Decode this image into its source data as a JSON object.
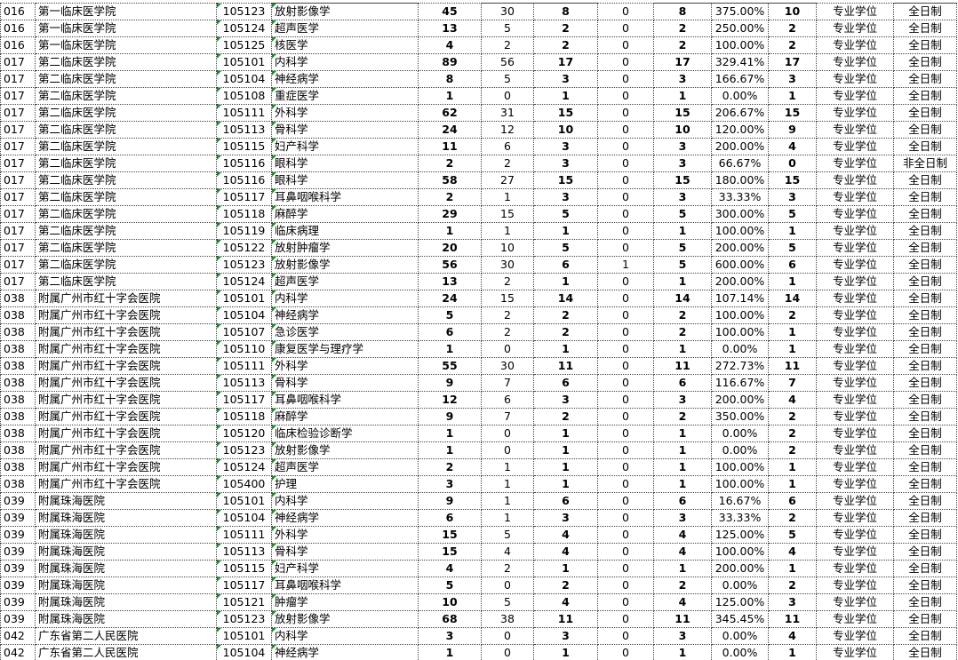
{
  "table": {
    "rows": [
      [
        "016",
        "第一临床医学院",
        "105123",
        "放射影像学",
        45,
        30,
        8,
        0,
        8,
        "375.00%",
        10,
        "专业学位",
        "全日制"
      ],
      [
        "016",
        "第一临床医学院",
        "105124",
        "超声医学",
        13,
        5,
        2,
        0,
        2,
        "250.00%",
        2,
        "专业学位",
        "全日制"
      ],
      [
        "016",
        "第一临床医学院",
        "105125",
        "核医学",
        4,
        2,
        2,
        0,
        2,
        "100.00%",
        2,
        "专业学位",
        "全日制"
      ],
      [
        "017",
        "第二临床医学院",
        "105101",
        "内科学",
        89,
        56,
        17,
        0,
        17,
        "329.41%",
        17,
        "专业学位",
        "全日制"
      ],
      [
        "017",
        "第二临床医学院",
        "105104",
        "神经病学",
        8,
        5,
        3,
        0,
        3,
        "166.67%",
        3,
        "专业学位",
        "全日制"
      ],
      [
        "017",
        "第二临床医学院",
        "105108",
        "重症医学",
        1,
        0,
        1,
        0,
        1,
        "0.00%",
        1,
        "专业学位",
        "全日制"
      ],
      [
        "017",
        "第二临床医学院",
        "105111",
        "外科学",
        62,
        31,
        15,
        0,
        15,
        "206.67%",
        15,
        "专业学位",
        "全日制"
      ],
      [
        "017",
        "第二临床医学院",
        "105113",
        "骨科学",
        24,
        12,
        10,
        0,
        10,
        "120.00%",
        9,
        "专业学位",
        "全日制"
      ],
      [
        "017",
        "第二临床医学院",
        "105115",
        "妇产科学",
        11,
        6,
        3,
        0,
        3,
        "200.00%",
        4,
        "专业学位",
        "全日制"
      ],
      [
        "017",
        "第二临床医学院",
        "105116",
        "眼科学",
        2,
        2,
        3,
        0,
        3,
        "66.67%",
        0,
        "专业学位",
        "非全日制"
      ],
      [
        "017",
        "第二临床医学院",
        "105116",
        "眼科学",
        58,
        27,
        15,
        0,
        15,
        "180.00%",
        15,
        "专业学位",
        "全日制"
      ],
      [
        "017",
        "第二临床医学院",
        "105117",
        "耳鼻咽喉科学",
        2,
        1,
        3,
        0,
        3,
        "33.33%",
        3,
        "专业学位",
        "全日制"
      ],
      [
        "017",
        "第二临床医学院",
        "105118",
        "麻醉学",
        29,
        15,
        5,
        0,
        5,
        "300.00%",
        5,
        "专业学位",
        "全日制"
      ],
      [
        "017",
        "第二临床医学院",
        "105119",
        "临床病理",
        1,
        1,
        1,
        0,
        1,
        "100.00%",
        1,
        "专业学位",
        "全日制"
      ],
      [
        "017",
        "第二临床医学院",
        "105122",
        "放射肿瘤学",
        20,
        10,
        5,
        0,
        5,
        "200.00%",
        5,
        "专业学位",
        "全日制"
      ],
      [
        "017",
        "第二临床医学院",
        "105123",
        "放射影像学",
        56,
        30,
        6,
        1,
        5,
        "600.00%",
        6,
        "专业学位",
        "全日制"
      ],
      [
        "017",
        "第二临床医学院",
        "105124",
        "超声医学",
        13,
        2,
        1,
        0,
        1,
        "200.00%",
        1,
        "专业学位",
        "全日制"
      ],
      [
        "038",
        "附属广州市红十字会医院",
        "105101",
        "内科学",
        24,
        15,
        14,
        0,
        14,
        "107.14%",
        14,
        "专业学位",
        "全日制"
      ],
      [
        "038",
        "附属广州市红十字会医院",
        "105104",
        "神经病学",
        5,
        2,
        2,
        0,
        2,
        "100.00%",
        2,
        "专业学位",
        "全日制"
      ],
      [
        "038",
        "附属广州市红十字会医院",
        "105107",
        "急诊医学",
        6,
        2,
        2,
        0,
        2,
        "100.00%",
        1,
        "专业学位",
        "全日制"
      ],
      [
        "038",
        "附属广州市红十字会医院",
        "105110",
        "康复医学与理疗学",
        1,
        0,
        1,
        0,
        1,
        "0.00%",
        1,
        "专业学位",
        "全日制"
      ],
      [
        "038",
        "附属广州市红十字会医院",
        "105111",
        "外科学",
        55,
        30,
        11,
        0,
        11,
        "272.73%",
        11,
        "专业学位",
        "全日制"
      ],
      [
        "038",
        "附属广州市红十字会医院",
        "105113",
        "骨科学",
        9,
        7,
        6,
        0,
        6,
        "116.67%",
        7,
        "专业学位",
        "全日制"
      ],
      [
        "038",
        "附属广州市红十字会医院",
        "105117",
        "耳鼻咽喉科学",
        12,
        6,
        3,
        0,
        3,
        "200.00%",
        4,
        "专业学位",
        "全日制"
      ],
      [
        "038",
        "附属广州市红十字会医院",
        "105118",
        "麻醉学",
        9,
        7,
        2,
        0,
        2,
        "350.00%",
        2,
        "专业学位",
        "全日制"
      ],
      [
        "038",
        "附属广州市红十字会医院",
        "105120",
        "临床检验诊断学",
        1,
        0,
        1,
        0,
        1,
        "0.00%",
        2,
        "专业学位",
        "全日制"
      ],
      [
        "038",
        "附属广州市红十字会医院",
        "105123",
        "放射影像学",
        1,
        0,
        1,
        0,
        1,
        "0.00%",
        2,
        "专业学位",
        "全日制"
      ],
      [
        "038",
        "附属广州市红十字会医院",
        "105124",
        "超声医学",
        2,
        1,
        1,
        0,
        1,
        "100.00%",
        1,
        "专业学位",
        "全日制"
      ],
      [
        "038",
        "附属广州市红十字会医院",
        "105400",
        "护理",
        3,
        1,
        1,
        0,
        1,
        "100.00%",
        1,
        "专业学位",
        "全日制"
      ],
      [
        "039",
        "附属珠海医院",
        "105101",
        "内科学",
        9,
        1,
        6,
        0,
        6,
        "16.67%",
        6,
        "专业学位",
        "全日制"
      ],
      [
        "039",
        "附属珠海医院",
        "105104",
        "神经病学",
        6,
        1,
        3,
        0,
        3,
        "33.33%",
        2,
        "专业学位",
        "全日制"
      ],
      [
        "039",
        "附属珠海医院",
        "105111",
        "外科学",
        15,
        5,
        4,
        0,
        4,
        "125.00%",
        5,
        "专业学位",
        "全日制"
      ],
      [
        "039",
        "附属珠海医院",
        "105113",
        "骨科学",
        15,
        4,
        4,
        0,
        4,
        "100.00%",
        4,
        "专业学位",
        "全日制"
      ],
      [
        "039",
        "附属珠海医院",
        "105115",
        "妇产科学",
        4,
        2,
        1,
        0,
        1,
        "200.00%",
        1,
        "专业学位",
        "全日制"
      ],
      [
        "039",
        "附属珠海医院",
        "105117",
        "耳鼻咽喉科学",
        5,
        0,
        2,
        0,
        2,
        "0.00%",
        2,
        "专业学位",
        "全日制"
      ],
      [
        "039",
        "附属珠海医院",
        "105121",
        "肿瘤学",
        10,
        5,
        4,
        0,
        4,
        "125.00%",
        3,
        "专业学位",
        "全日制"
      ],
      [
        "039",
        "附属珠海医院",
        "105123",
        "放射影像学",
        68,
        38,
        11,
        0,
        11,
        "345.45%",
        11,
        "专业学位",
        "全日制"
      ],
      [
        "042",
        "广东省第二人民医院",
        "105101",
        "内科学",
        3,
        0,
        3,
        0,
        3,
        "0.00%",
        4,
        "专业学位",
        "全日制"
      ],
      [
        "042",
        "广东省第二人民医院",
        "105104",
        "神经病学",
        1,
        0,
        1,
        0,
        1,
        "0.00%",
        1,
        "专业学位",
        "全日制"
      ]
    ]
  }
}
